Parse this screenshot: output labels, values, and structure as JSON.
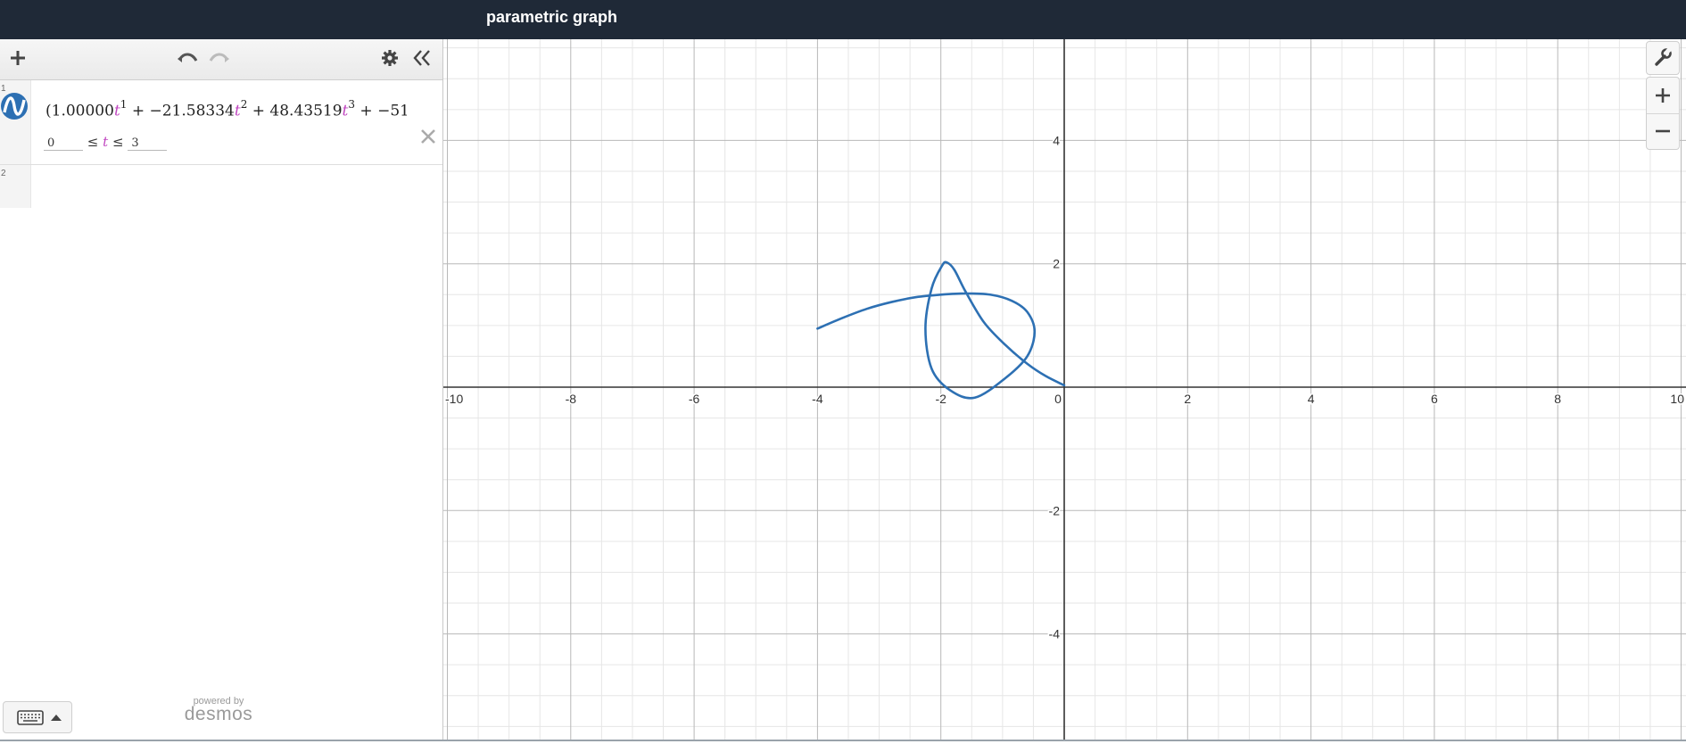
{
  "window": {
    "title": "parametric graph"
  },
  "toolbar": {
    "add_icon": "plus-icon",
    "undo_icon": "undo-icon",
    "redo_icon": "redo-icon",
    "settings_icon": "gear-icon",
    "collapse_icon": "double-chevron-left-icon"
  },
  "expressions": [
    {
      "index": "1",
      "icon": "parametric-curve-icon",
      "color": "#2d70b3",
      "terms": [
        {
          "open": "(",
          "coef": "1.00000",
          "var": "t",
          "power": "1"
        },
        {
          "op": "+",
          "coef": "−21.58334",
          "var": "t",
          "power": "2"
        },
        {
          "op": "+",
          "coef": "48.43519",
          "var": "t",
          "power": "3"
        },
        {
          "op": "+",
          "coef": "−51"
        }
      ],
      "domain": {
        "min": "0",
        "le1": "≤",
        "var": "t",
        "le2": "≤",
        "max": "3"
      },
      "remove_icon": "close-icon"
    },
    {
      "index": "2"
    }
  ],
  "branding": {
    "powered_by": "powered by",
    "logo": "desmos"
  },
  "keyboard": {
    "icon": "keyboard-icon",
    "toggle_icon": "caret-up-icon"
  },
  "graph": {
    "x_ticks": [
      "-10",
      "-8",
      "-6",
      "-4",
      "-2",
      "0",
      "2",
      "4",
      "6",
      "8",
      "10"
    ],
    "y_ticks": [
      "4",
      "2",
      "-2",
      "-4"
    ],
    "xlim": [
      -10,
      10
    ],
    "ylim": [
      -5.6,
      5.6
    ],
    "curve_color": "#2d70b3",
    "wrench_icon": "wrench-icon",
    "zoom_in_icon": "plus-icon",
    "zoom_out_icon": "minus-icon",
    "curve_points": [
      [
        -4.0,
        0.95
      ],
      [
        -3.6,
        1.12
      ],
      [
        -3.2,
        1.27
      ],
      [
        -2.8,
        1.38
      ],
      [
        -2.4,
        1.46
      ],
      [
        -2.0,
        1.5
      ],
      [
        -1.6,
        1.52
      ],
      [
        -1.2,
        1.5
      ],
      [
        -0.85,
        1.4
      ],
      [
        -0.6,
        1.22
      ],
      [
        -0.48,
        0.9
      ],
      [
        -0.6,
        0.5
      ],
      [
        -0.95,
        0.15
      ],
      [
        -1.45,
        -0.17
      ],
      [
        -1.85,
        -0.05
      ],
      [
        -2.15,
        0.3
      ],
      [
        -2.25,
        0.95
      ],
      [
        -2.15,
        1.6
      ],
      [
        -1.98,
        1.97
      ],
      [
        -1.9,
        2.02
      ],
      [
        -1.78,
        1.9
      ],
      [
        -1.6,
        1.55
      ],
      [
        -1.3,
        1.05
      ],
      [
        -0.95,
        0.68
      ],
      [
        -0.6,
        0.38
      ],
      [
        -0.3,
        0.18
      ],
      [
        0.0,
        0.03
      ]
    ]
  }
}
